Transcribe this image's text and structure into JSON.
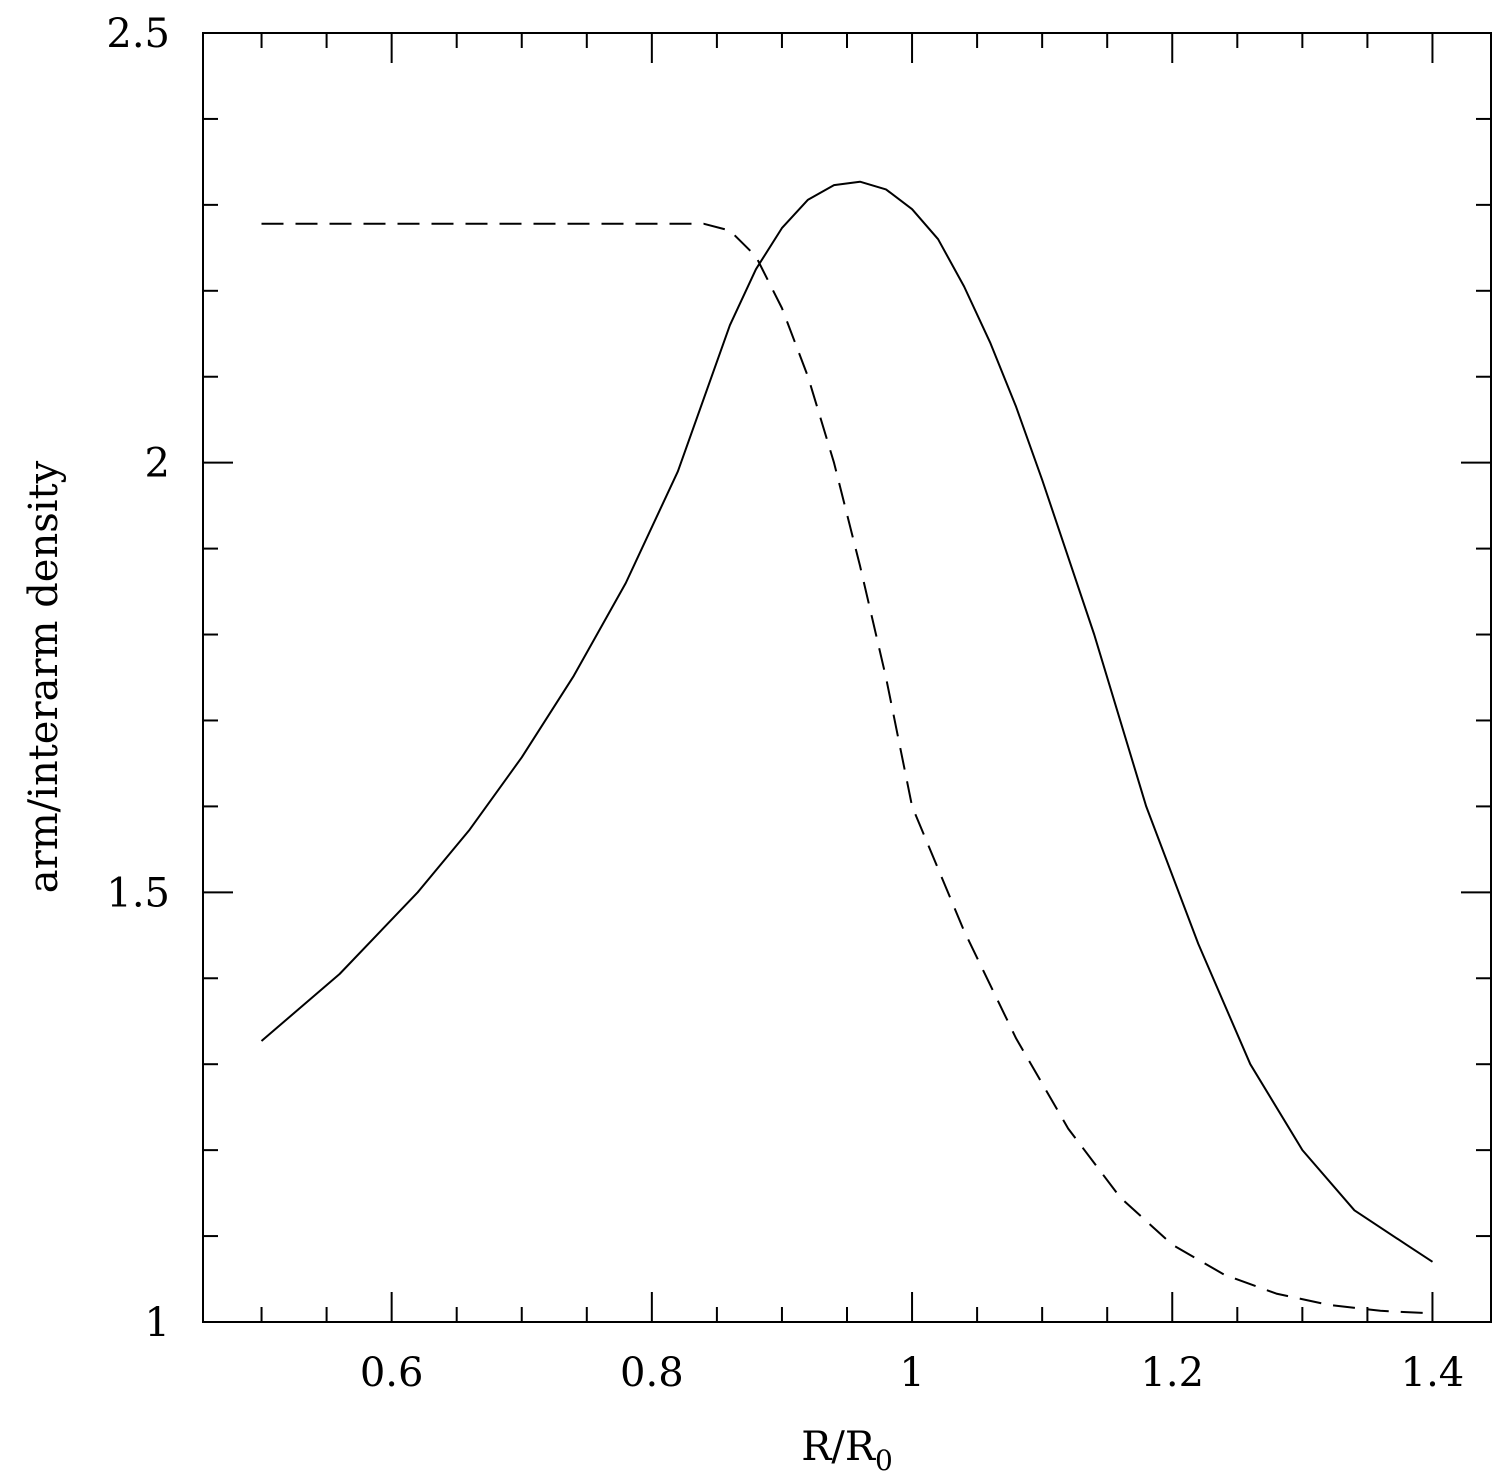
{
  "chart_data": {
    "type": "line",
    "xlabel": "R/R",
    "xlabel_sub": "0",
    "ylabel": "arm/interarm density",
    "xlim": [
      0.455,
      1.445
    ],
    "ylim": [
      1.0,
      2.5
    ],
    "x_ticks_major": [
      0.6,
      0.8,
      1.0,
      1.2,
      1.4
    ],
    "x_tick_labels": [
      "0.6",
      "0.8",
      "1",
      "1.2",
      "1.4"
    ],
    "x_ticks_minor": [
      0.5,
      0.55,
      0.65,
      0.7,
      0.75,
      0.85,
      0.9,
      0.95,
      1.05,
      1.1,
      1.15,
      1.25,
      1.3,
      1.35
    ],
    "y_ticks_major": [
      1.0,
      1.5,
      2.0,
      2.5
    ],
    "y_tick_labels": [
      "1",
      "1.5",
      "2",
      "2.5"
    ],
    "y_ticks_minor": [
      1.1,
      1.2,
      1.3,
      1.4,
      1.6,
      1.7,
      1.8,
      1.9,
      2.1,
      2.2,
      2.3,
      2.4
    ],
    "grid": false,
    "legend": "none",
    "series": [
      {
        "style": "solid",
        "color": "#000000",
        "x": [
          0.5,
          0.56,
          0.62,
          0.66,
          0.7,
          0.74,
          0.78,
          0.82,
          0.86,
          0.88,
          0.9,
          0.92,
          0.94,
          0.96,
          0.98,
          1.0,
          1.02,
          1.04,
          1.06,
          1.08,
          1.1,
          1.14,
          1.18,
          1.22,
          1.26,
          1.3,
          1.34,
          1.38,
          1.4
        ],
        "y": [
          1.327,
          1.405,
          1.5,
          1.573,
          1.657,
          1.752,
          1.86,
          1.99,
          2.16,
          2.225,
          2.273,
          2.306,
          2.323,
          2.327,
          2.318,
          2.295,
          2.26,
          2.205,
          2.14,
          2.065,
          1.98,
          1.8,
          1.6,
          1.44,
          1.3,
          1.2,
          1.13,
          1.09,
          1.07
        ]
      },
      {
        "style": "dashed",
        "color": "#000000",
        "x": [
          0.5,
          0.6,
          0.7,
          0.8,
          0.84,
          0.86,
          0.88,
          0.9,
          0.92,
          0.94,
          0.96,
          0.98,
          1.0,
          1.04,
          1.08,
          1.12,
          1.16,
          1.2,
          1.24,
          1.28,
          1.32,
          1.36,
          1.4
        ],
        "y": [
          2.278,
          2.278,
          2.278,
          2.278,
          2.278,
          2.27,
          2.24,
          2.18,
          2.1,
          2.0,
          1.88,
          1.75,
          1.6,
          1.455,
          1.33,
          1.225,
          1.145,
          1.09,
          1.055,
          1.033,
          1.02,
          1.013,
          1.01
        ]
      }
    ]
  }
}
